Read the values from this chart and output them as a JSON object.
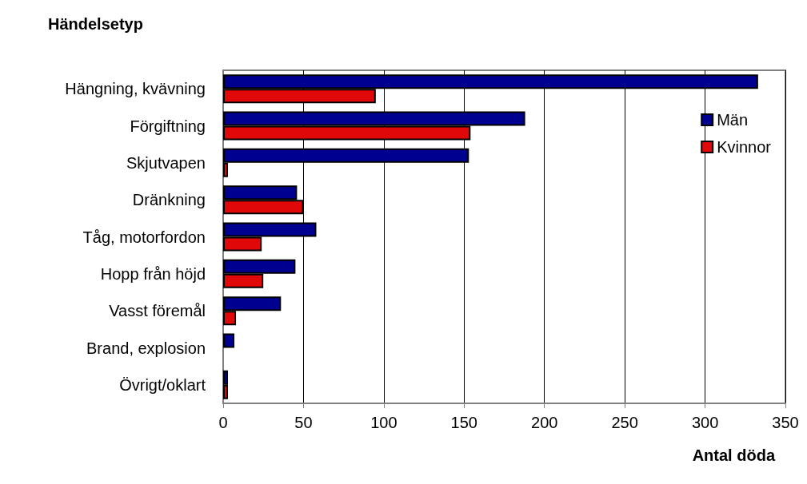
{
  "chart_data": {
    "type": "bar",
    "orientation": "horizontal",
    "ylabel": "Händelsetyp",
    "xlabel": "Antal döda",
    "categories": [
      "Hängning, kvävning",
      "Förgiftning",
      "Skjutvapen",
      "Dränkning",
      "Tåg, motorfordon",
      "Hopp från höjd",
      "Vasst föremål",
      "Brand, explosion",
      "Övrigt/oklart"
    ],
    "series": [
      {
        "name": "Män",
        "color": "#000090",
        "values": [
          333,
          188,
          153,
          46,
          58,
          45,
          36,
          7,
          3
        ]
      },
      {
        "name": "Kvinnor",
        "color": "#e00808",
        "values": [
          95,
          154,
          3,
          50,
          24,
          25,
          8,
          0,
          3
        ]
      }
    ],
    "xlim": [
      0,
      350
    ],
    "xticks": [
      0,
      50,
      100,
      150,
      200,
      250,
      300,
      350
    ],
    "grid": "x",
    "legend": "top right"
  }
}
